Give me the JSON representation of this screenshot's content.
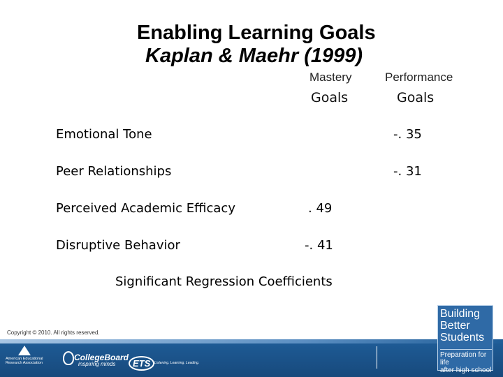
{
  "slide": {
    "title": "Enabling Learning Goals",
    "subtitle": "Kaplan & Maehr (1999)"
  },
  "table": {
    "columns": [
      {
        "line1": "Mastery",
        "line2": "Goals"
      },
      {
        "line1": "Performance",
        "line2": "Goals"
      }
    ],
    "rows": [
      {
        "label": "Emotional Tone",
        "mastery": "",
        "performance": "-. 35"
      },
      {
        "label": "Peer Relationships",
        "mastery": "",
        "performance": "-. 31"
      },
      {
        "label": "Perceived Academic Efficacy",
        "mastery": ". 49",
        "performance": ""
      },
      {
        "label": "Disruptive Behavior",
        "mastery": "-. 41",
        "performance": ""
      }
    ],
    "caption": "Significant Regression Coefficients"
  },
  "footer": {
    "copyright": "Copyright © 2010. All rights reserved.",
    "aera": "American Educational Research Association",
    "collegeboard_name": "CollegeBoard",
    "collegeboard_tagline": "inspiring minds",
    "ets_name": "ETS",
    "ets_tagline": "Listening. Learning. Leading.",
    "bbs_title": "Building\nBetter\nStudents",
    "bbs_subtitle": "Preparation for life\nafter high school"
  },
  "colors": {
    "footer_band": "#1f5d98",
    "badge": "#2f6aa6"
  }
}
